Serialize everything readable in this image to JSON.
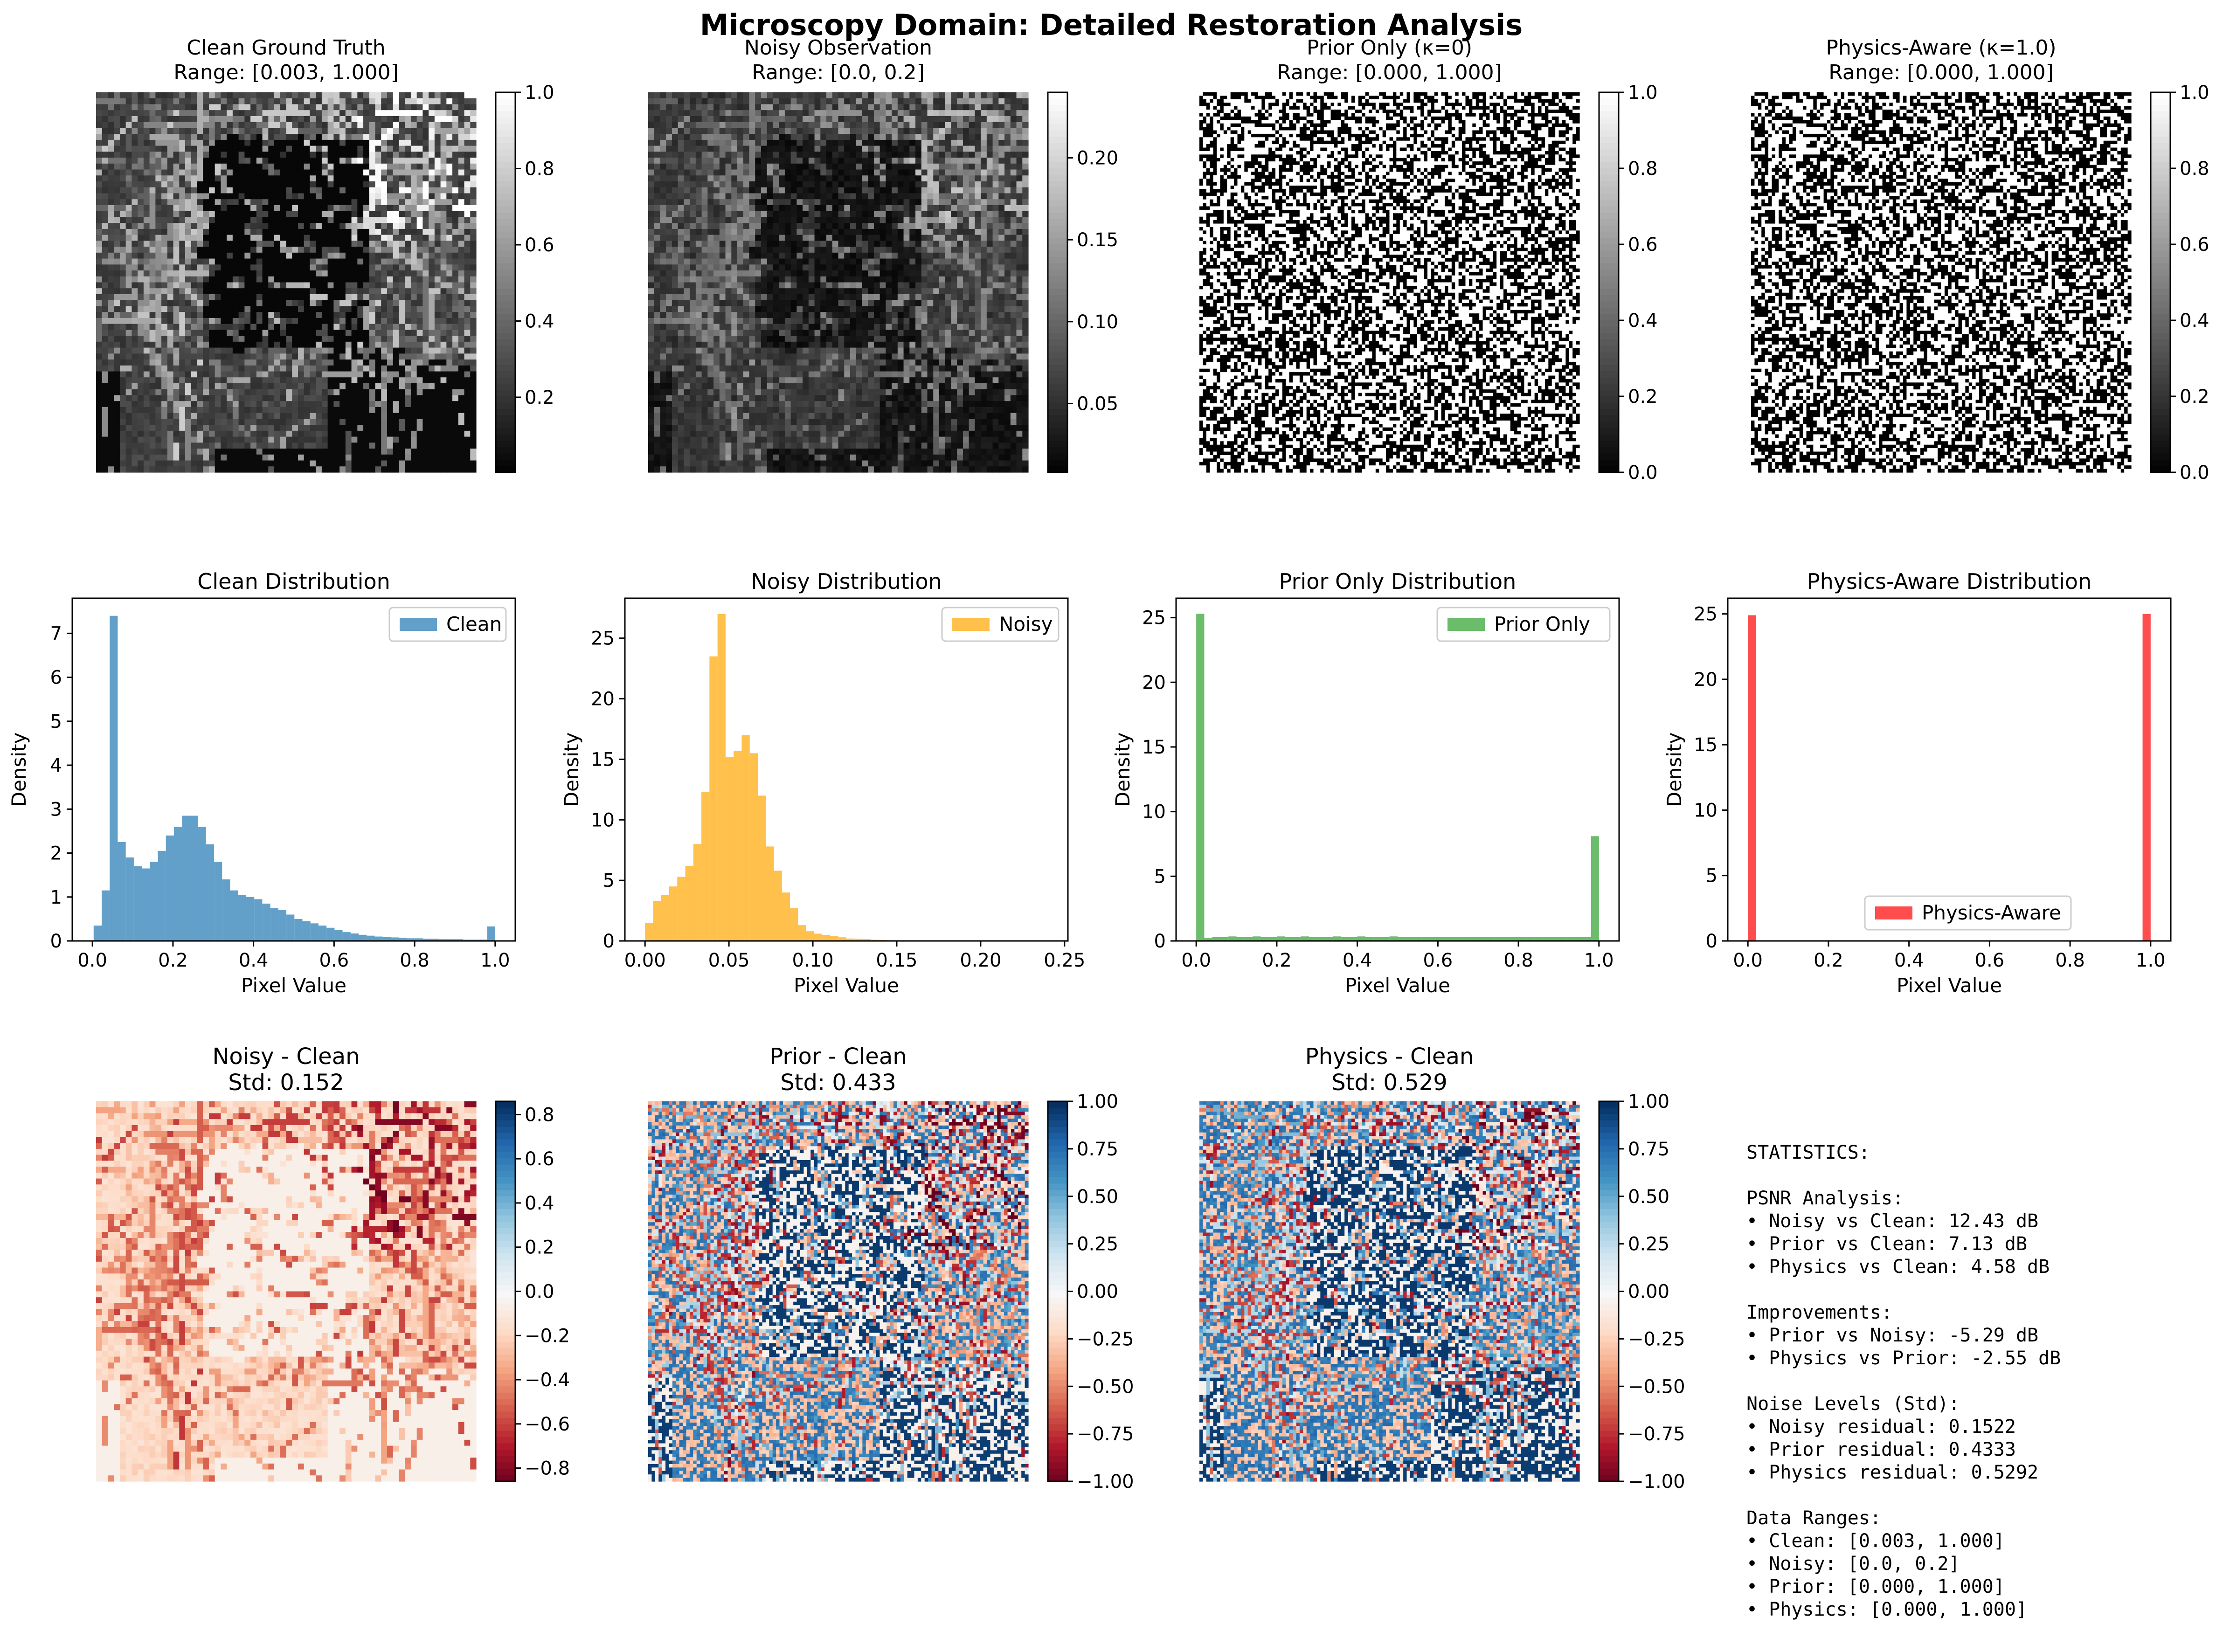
{
  "suptitle": "Microscopy Domain: Detailed Restoration Analysis",
  "image_panels": [
    {
      "title": "Clean Ground Truth",
      "subtitle": "Range: [0.003, 1.000]",
      "kind": "clean",
      "cmap": "gray",
      "colorbar": {
        "min": 0.003,
        "max": 1.0,
        "ticks": [
          0.2,
          0.4,
          0.6,
          0.8,
          1.0
        ],
        "labels": [
          "0.2",
          "0.4",
          "0.6",
          "0.8",
          "1.0"
        ]
      }
    },
    {
      "title": "Noisy Observation",
      "subtitle": "Range: [0.0, 0.2]",
      "kind": "noisy",
      "cmap": "gray",
      "colorbar": {
        "min": 0.008,
        "max": 0.24,
        "ticks": [
          0.05,
          0.1,
          0.15,
          0.2
        ],
        "labels": [
          "0.05",
          "0.10",
          "0.15",
          "0.20"
        ]
      }
    },
    {
      "title": "Prior Only (κ=0)",
      "subtitle": "Range: [0.000, 1.000]",
      "kind": "binary",
      "cmap": "gray",
      "colorbar": {
        "min": 0.0,
        "max": 1.0,
        "ticks": [
          0.0,
          0.2,
          0.4,
          0.6,
          0.8,
          1.0
        ],
        "labels": [
          "0.0",
          "0.2",
          "0.4",
          "0.6",
          "0.8",
          "1.0"
        ]
      }
    },
    {
      "title": "Physics-Aware (κ=1.0)",
      "subtitle": "Range: [0.000, 1.000]",
      "kind": "binary",
      "cmap": "gray",
      "colorbar": {
        "min": 0.0,
        "max": 1.0,
        "ticks": [
          0.0,
          0.2,
          0.4,
          0.6,
          0.8,
          1.0
        ],
        "labels": [
          "0.0",
          "0.2",
          "0.4",
          "0.6",
          "0.8",
          "1.0"
        ]
      }
    }
  ],
  "residual_panels": [
    {
      "title": "Noisy - Clean",
      "subtitle": "Std: 0.152",
      "kind": "res_noisy",
      "cmap": "RdBu",
      "colorbar": {
        "min": -0.86,
        "max": 0.86,
        "ticks": [
          -0.8,
          -0.6,
          -0.4,
          -0.2,
          0.0,
          0.2,
          0.4,
          0.6,
          0.8
        ],
        "labels": [
          "−0.8",
          "−0.6",
          "−0.4",
          "−0.2",
          "0.0",
          "0.2",
          "0.4",
          "0.6",
          "0.8"
        ]
      }
    },
    {
      "title": "Prior - Clean",
      "subtitle": "Std: 0.433",
      "kind": "res_prior",
      "cmap": "RdBu",
      "colorbar": {
        "min": -1.0,
        "max": 1.0,
        "ticks": [
          -1.0,
          -0.75,
          -0.5,
          -0.25,
          0.0,
          0.25,
          0.5,
          0.75,
          1.0
        ],
        "labels": [
          "−1.00",
          "−0.75",
          "−0.50",
          "−0.25",
          "0.00",
          "0.25",
          "0.50",
          "0.75",
          "1.00"
        ]
      }
    },
    {
      "title": "Physics - Clean",
      "subtitle": "Std: 0.529",
      "kind": "res_physics",
      "cmap": "RdBu",
      "colorbar": {
        "min": -1.0,
        "max": 1.0,
        "ticks": [
          -1.0,
          -0.75,
          -0.5,
          -0.25,
          0.0,
          0.25,
          0.5,
          0.75,
          1.0
        ],
        "labels": [
          "−1.00",
          "−0.75",
          "−0.50",
          "−0.25",
          "0.00",
          "0.25",
          "0.50",
          "0.75",
          "1.00"
        ]
      }
    }
  ],
  "chart_data": [
    {
      "type": "bar",
      "title": "Clean Distribution",
      "xlabel": "Pixel Value",
      "ylabel": "Density",
      "legend": "Clean",
      "legend_position": "upper right",
      "color": "#1f77b4",
      "xlim": [
        -0.05,
        1.05
      ],
      "ylim": [
        0,
        7.8
      ],
      "xticks": [
        0.0,
        0.2,
        0.4,
        0.6,
        0.8,
        1.0
      ],
      "xtick_labels": [
        "0.0",
        "0.2",
        "0.4",
        "0.6",
        "0.8",
        "1.0"
      ],
      "yticks": [
        0,
        1,
        2,
        3,
        4,
        5,
        6,
        7
      ],
      "ytick_labels": [
        "0",
        "1",
        "2",
        "3",
        "4",
        "5",
        "6",
        "7"
      ],
      "bin_range": [
        0.003,
        1.0
      ],
      "values": [
        0.35,
        1.15,
        7.4,
        2.25,
        1.9,
        1.7,
        1.65,
        1.8,
        2.05,
        2.4,
        2.6,
        2.85,
        2.85,
        2.6,
        2.2,
        1.8,
        1.4,
        1.15,
        1.05,
        1.0,
        0.95,
        0.85,
        0.75,
        0.7,
        0.6,
        0.5,
        0.45,
        0.4,
        0.35,
        0.3,
        0.25,
        0.2,
        0.17,
        0.14,
        0.12,
        0.1,
        0.09,
        0.08,
        0.07,
        0.06,
        0.06,
        0.05,
        0.05,
        0.04,
        0.04,
        0.04,
        0.03,
        0.03,
        0.03,
        0.33
      ]
    },
    {
      "type": "bar",
      "title": "Noisy Distribution",
      "xlabel": "Pixel Value",
      "ylabel": "Density",
      "legend": "Noisy",
      "legend_position": "upper right",
      "color": "#ffa500",
      "xlim": [
        -0.012,
        0.252
      ],
      "ylim": [
        0,
        28.3
      ],
      "xticks": [
        0.0,
        0.05,
        0.1,
        0.15,
        0.2,
        0.25
      ],
      "xtick_labels": [
        "0.00",
        "0.05",
        "0.10",
        "0.15",
        "0.20",
        "0.25"
      ],
      "yticks": [
        0,
        5,
        10,
        15,
        20,
        25
      ],
      "ytick_labels": [
        "0",
        "5",
        "10",
        "15",
        "20",
        "25"
      ],
      "bin_range": [
        0.0,
        0.24
      ],
      "values": [
        1.5,
        3.3,
        3.8,
        4.5,
        5.3,
        6.2,
        8.0,
        12.3,
        23.5,
        27.0,
        15.2,
        15.7,
        17.0,
        15.5,
        12.0,
        7.8,
        5.8,
        4.0,
        2.7,
        1.3,
        0.8,
        0.6,
        0.5,
        0.4,
        0.3,
        0.2,
        0.18,
        0.15,
        0.1,
        0.08,
        0.06,
        0.05,
        0.04,
        0.03,
        0.02,
        0.02,
        0.02,
        0.01,
        0.01,
        0.01,
        0.01,
        0.01,
        0.01,
        0.01,
        0.0,
        0.0,
        0.0,
        0.0,
        0.0,
        0.0
      ]
    },
    {
      "type": "bar",
      "title": "Prior Only Distribution",
      "xlabel": "Pixel Value",
      "ylabel": "Density",
      "legend": "Prior Only",
      "legend_position": "upper right",
      "color": "#2ca02c",
      "xlim": [
        -0.05,
        1.05
      ],
      "ylim": [
        0,
        26.5
      ],
      "xticks": [
        0.0,
        0.2,
        0.4,
        0.6,
        0.8,
        1.0
      ],
      "xtick_labels": [
        "0.0",
        "0.2",
        "0.4",
        "0.6",
        "0.8",
        "1.0"
      ],
      "yticks": [
        0,
        5,
        10,
        15,
        20,
        25
      ],
      "ytick_labels": [
        "0",
        "5",
        "10",
        "15",
        "20",
        "25"
      ],
      "bin_range": [
        0.0,
        1.0
      ],
      "values": [
        25.3,
        0.25,
        0.3,
        0.3,
        0.35,
        0.3,
        0.3,
        0.35,
        0.3,
        0.3,
        0.35,
        0.3,
        0.3,
        0.35,
        0.3,
        0.3,
        0.3,
        0.35,
        0.3,
        0.3,
        0.35,
        0.3,
        0.3,
        0.3,
        0.35,
        0.3,
        0.3,
        0.3,
        0.3,
        0.3,
        0.3,
        0.3,
        0.3,
        0.3,
        0.3,
        0.3,
        0.3,
        0.3,
        0.3,
        0.3,
        0.3,
        0.3,
        0.3,
        0.3,
        0.3,
        0.3,
        0.3,
        0.3,
        0.3,
        8.1
      ]
    },
    {
      "type": "bar",
      "title": "Physics-Aware Distribution",
      "xlabel": "Pixel Value",
      "ylabel": "Density",
      "legend": "Physics-Aware",
      "legend_position": "lower center",
      "color": "#ff0000",
      "xlim": [
        -0.05,
        1.05
      ],
      "ylim": [
        0,
        26.2
      ],
      "xticks": [
        0.0,
        0.2,
        0.4,
        0.6,
        0.8,
        1.0
      ],
      "xtick_labels": [
        "0.0",
        "0.2",
        "0.4",
        "0.6",
        "0.8",
        "1.0"
      ],
      "yticks": [
        0,
        5,
        10,
        15,
        20,
        25
      ],
      "ytick_labels": [
        "0",
        "5",
        "10",
        "15",
        "20",
        "25"
      ],
      "bin_range": [
        0.0,
        1.0
      ],
      "values": [
        24.9,
        0,
        0,
        0,
        0,
        0,
        0,
        0,
        0,
        0,
        0,
        0,
        0,
        0,
        0,
        0,
        0,
        0,
        0,
        0,
        0,
        0,
        0,
        0,
        0,
        0,
        0,
        0,
        0,
        0,
        0,
        0,
        0,
        0,
        0,
        0,
        0,
        0,
        0,
        0,
        0,
        0,
        0,
        0,
        0,
        0,
        0,
        0,
        0,
        25.0
      ]
    }
  ],
  "statistics": {
    "lines": [
      "STATISTICS:",
      "",
      "PSNR Analysis:",
      "• Noisy vs Clean: 12.43 dB",
      "• Prior vs Clean: 7.13 dB",
      "• Physics vs Clean: 4.58 dB",
      "",
      "Improvements:",
      "• Prior vs Noisy: -5.29 dB",
      "• Physics vs Prior: -2.55 dB",
      "",
      "Noise Levels (Std):",
      "• Noisy residual: 0.1522",
      "• Prior residual: 0.4333",
      "• Physics residual: 0.5292",
      "",
      "Data Ranges:",
      "• Clean: [0.003, 1.000]",
      "• Noisy: [0.0, 0.2]",
      "• Prior: [0.000, 1.000]",
      "• Physics: [0.000, 1.000]"
    ]
  }
}
